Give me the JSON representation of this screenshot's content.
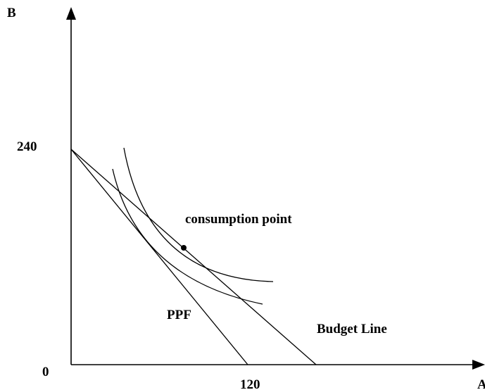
{
  "diagram": {
    "y_axis_label": "B",
    "x_axis_label": "A",
    "origin_label": "0",
    "y_tick_label": "240",
    "x_tick_label": "120",
    "labels": {
      "consumption_point": "consumption point",
      "ppf": "PPF",
      "budget_line": "Budget Line"
    }
  }
}
